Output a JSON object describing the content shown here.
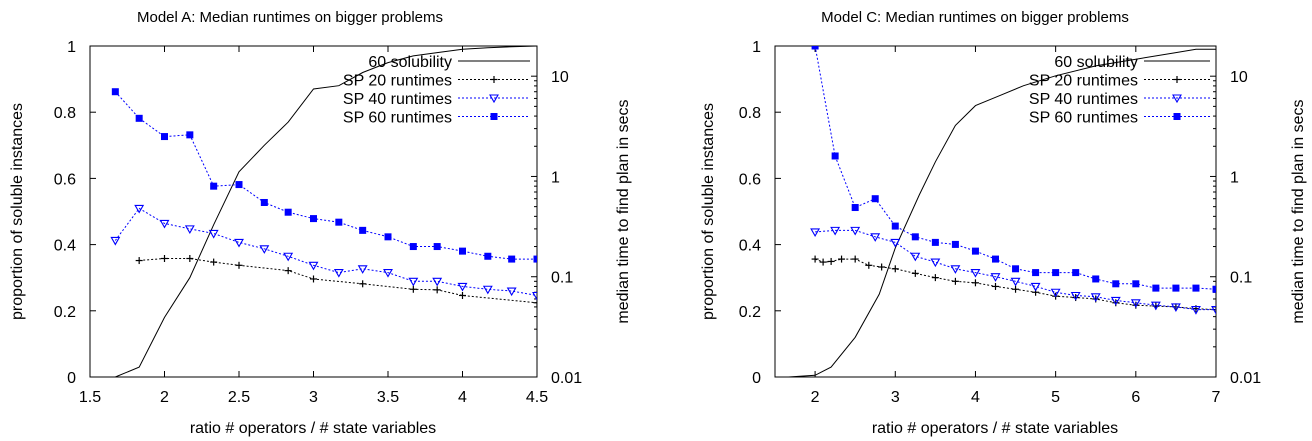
{
  "figure": {
    "description_label": ""
  },
  "chart_data": [
    {
      "type": "line",
      "title": "Model A: Median runtimes on bigger problems",
      "xlabel": "ratio # operators / # state variables",
      "ylabel": "proportion of soluble instances",
      "y2label": "median time to find plan in secs",
      "xlim": [
        1.5,
        4.5
      ],
      "ylim": [
        0,
        1
      ],
      "y2lim": [
        0.01,
        20
      ],
      "y2scale": "log",
      "x_ticks": [
        "1.5",
        "2",
        "2.5",
        "3",
        "3.5",
        "4",
        "4.5"
      ],
      "y_ticks": [
        "0",
        "0.2",
        "0.4",
        "0.6",
        "0.8",
        "1"
      ],
      "y2_ticks": [
        "0.01",
        "0.1",
        "1",
        "10"
      ],
      "legend_position": "top-right",
      "grid": false,
      "series": [
        {
          "name": "60 solubility",
          "axis": "left",
          "style": "solid",
          "color": "#000000",
          "marker": "none",
          "x": [
            1.67,
            1.83,
            2.0,
            2.17,
            2.33,
            2.5,
            2.67,
            2.83,
            3.0,
            3.17,
            3.33,
            3.5,
            3.67,
            3.83,
            4.0,
            4.17,
            4.33,
            4.5
          ],
          "y": [
            0.0,
            0.03,
            0.18,
            0.3,
            0.46,
            0.62,
            0.7,
            0.77,
            0.87,
            0.88,
            0.92,
            0.95,
            0.97,
            0.98,
            0.99,
            0.995,
            0.998,
            1.0
          ]
        },
        {
          "name": "SP 20 runtimes",
          "axis": "right",
          "style": "dotted",
          "color": "#000000",
          "marker": "plus",
          "x": [
            1.83,
            2.0,
            2.17,
            2.33,
            2.5,
            2.83,
            3.0,
            3.33,
            3.67,
            3.83,
            4.0,
            4.5
          ],
          "y": [
            0.145,
            0.152,
            0.152,
            0.14,
            0.13,
            0.115,
            0.095,
            0.085,
            0.075,
            0.074,
            0.065,
            0.055
          ]
        },
        {
          "name": "SP 40 runtimes",
          "axis": "right",
          "style": "dotted",
          "color": "#0000ff",
          "marker": "triangle-down",
          "x": [
            1.67,
            1.83,
            2.0,
            2.17,
            2.33,
            2.5,
            2.67,
            2.83,
            3.0,
            3.17,
            3.33,
            3.5,
            3.67,
            3.83,
            4.0,
            4.17,
            4.33,
            4.5
          ],
          "y": [
            0.23,
            0.48,
            0.34,
            0.3,
            0.27,
            0.22,
            0.19,
            0.16,
            0.13,
            0.11,
            0.12,
            0.11,
            0.09,
            0.09,
            0.08,
            0.075,
            0.072,
            0.065
          ]
        },
        {
          "name": "SP 60 runtimes",
          "axis": "right",
          "style": "dotted",
          "color": "#0000ff",
          "marker": "square",
          "x": [
            1.67,
            1.83,
            2.0,
            2.17,
            2.33,
            2.5,
            2.67,
            2.83,
            3.0,
            3.17,
            3.33,
            3.5,
            3.67,
            3.83,
            4.0,
            4.17,
            4.33,
            4.5
          ],
          "y": [
            7.0,
            3.8,
            2.5,
            2.6,
            0.8,
            0.83,
            0.55,
            0.44,
            0.38,
            0.35,
            0.29,
            0.25,
            0.2,
            0.2,
            0.18,
            0.16,
            0.15,
            0.15
          ]
        }
      ]
    },
    {
      "type": "line",
      "title": "Model C: Median runtimes on bigger problems",
      "xlabel": "ratio # operators / # state variables",
      "ylabel": "proportion of soluble instances",
      "y2label": "median time to find plan in secs",
      "xlim": [
        1.5,
        7
      ],
      "ylim": [
        0,
        1
      ],
      "y2lim": [
        0.01,
        20
      ],
      "y2scale": "log",
      "x_ticks": [
        "2",
        "3",
        "4",
        "5",
        "6",
        "7"
      ],
      "y_ticks": [
        "0",
        "0.2",
        "0.4",
        "0.6",
        "0.8",
        "1"
      ],
      "y2_ticks": [
        "0.01",
        "0.1",
        "1",
        "10"
      ],
      "legend_position": "top-right",
      "grid": false,
      "series": [
        {
          "name": "60 solubility",
          "axis": "left",
          "style": "solid",
          "color": "#000000",
          "marker": "none",
          "x": [
            1.67,
            2.0,
            2.2,
            2.5,
            2.8,
            3.0,
            3.3,
            3.5,
            3.75,
            4.0,
            4.3,
            4.6,
            5.0,
            5.5,
            6.0,
            6.5,
            6.75,
            7.0
          ],
          "y": [
            0.0,
            0.005,
            0.03,
            0.12,
            0.25,
            0.39,
            0.55,
            0.65,
            0.76,
            0.82,
            0.85,
            0.88,
            0.91,
            0.94,
            0.96,
            0.98,
            0.99,
            0.99
          ]
        },
        {
          "name": "SP 20 runtimes",
          "axis": "right",
          "style": "dotted",
          "color": "#000000",
          "marker": "plus",
          "x": [
            2.0,
            2.1,
            2.2,
            2.33,
            2.5,
            2.67,
            2.83,
            3.0,
            3.25,
            3.5,
            3.75,
            4.0,
            4.25,
            4.5,
            4.75,
            5.0,
            5.25,
            5.5,
            5.75,
            6.0,
            6.25,
            6.5,
            6.75,
            7.0
          ],
          "y": [
            0.15,
            0.14,
            0.142,
            0.15,
            0.15,
            0.13,
            0.125,
            0.12,
            0.108,
            0.098,
            0.09,
            0.087,
            0.08,
            0.075,
            0.07,
            0.064,
            0.062,
            0.06,
            0.055,
            0.052,
            0.051,
            0.05,
            0.048,
            0.047
          ]
        },
        {
          "name": "SP 40 runtimes",
          "axis": "right",
          "style": "dotted",
          "color": "#0000ff",
          "marker": "triangle-down",
          "x": [
            2.0,
            2.25,
            2.5,
            2.75,
            3.0,
            3.25,
            3.5,
            3.75,
            4.0,
            4.25,
            4.5,
            4.75,
            5.0,
            5.25,
            5.5,
            5.75,
            6.0,
            6.25,
            6.5,
            6.75,
            7.0
          ],
          "y": [
            0.28,
            0.29,
            0.29,
            0.25,
            0.22,
            0.16,
            0.14,
            0.12,
            0.11,
            0.1,
            0.09,
            0.08,
            0.07,
            0.065,
            0.063,
            0.058,
            0.055,
            0.052,
            0.05,
            0.047,
            0.047
          ]
        },
        {
          "name": "SP 60 runtimes",
          "axis": "right",
          "style": "dotted",
          "color": "#0000ff",
          "marker": "square",
          "x": [
            2.0,
            2.25,
            2.5,
            2.75,
            3.0,
            3.25,
            3.5,
            3.75,
            4.0,
            4.25,
            4.5,
            4.75,
            5.0,
            5.25,
            5.5,
            5.75,
            6.0,
            6.25,
            6.5,
            6.75,
            7.0
          ],
          "y": [
            20.0,
            1.6,
            0.49,
            0.6,
            0.32,
            0.25,
            0.22,
            0.21,
            0.18,
            0.15,
            0.12,
            0.11,
            0.11,
            0.11,
            0.095,
            0.085,
            0.085,
            0.077,
            0.077,
            0.077,
            0.075
          ]
        }
      ]
    }
  ]
}
